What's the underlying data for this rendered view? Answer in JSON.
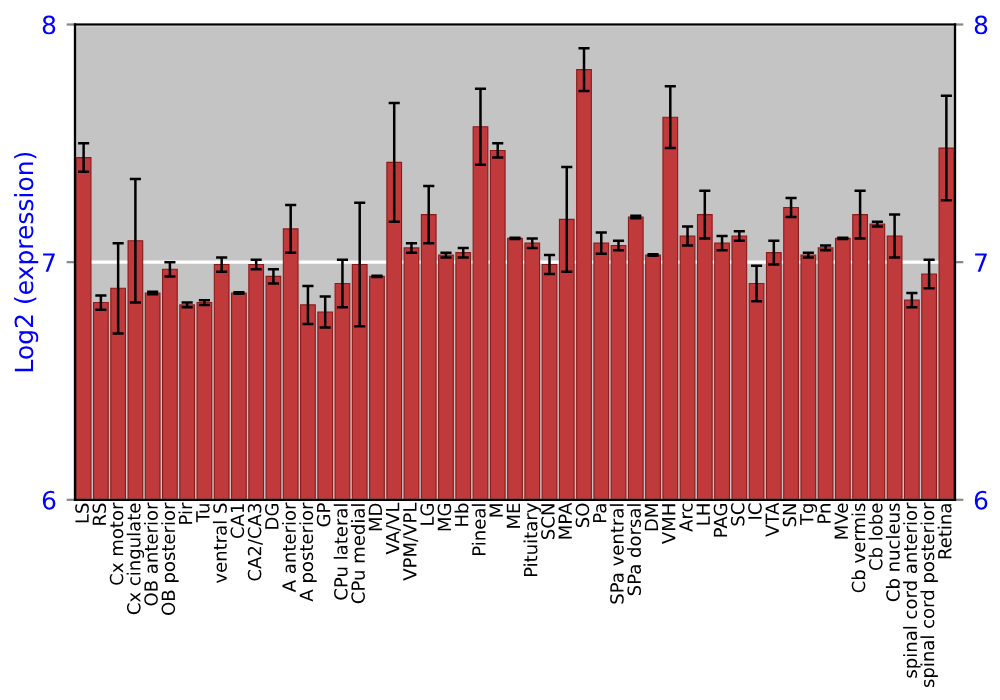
{
  "chart_data": {
    "type": "bar",
    "ylabel": "Log2 (expression)",
    "categories": [
      "LS",
      "RS",
      "Cx motor",
      "Cx cingulate",
      "OB anterior",
      "OB posterior",
      "Pir",
      "Tu",
      "ventral S",
      "CA1",
      "CA2/CA3",
      "DG",
      "A anterior",
      "A posterior",
      "GP",
      "CPu lateral",
      "CPu medial",
      "MD",
      "VA/VL",
      "VPM/VPL",
      "LG",
      "MG",
      "Hb",
      "Pineal",
      "M",
      "ME",
      "Pituitary",
      "SCN",
      "MPA",
      "SO",
      "Pa",
      "SPa ventral",
      "SPa dorsal",
      "DM",
      "VMH",
      "Arc",
      "LH",
      "PAG",
      "SC",
      "IC",
      "VTA",
      "SN",
      "Tg",
      "Pn",
      "MVe",
      "Cb vermis",
      "Cb lobe",
      "Cb nucleus",
      "spinal cord anterior",
      "spinal cord posterior",
      "Retina"
    ],
    "values": [
      7.44,
      6.83,
      6.89,
      7.09,
      6.87,
      6.97,
      6.82,
      6.83,
      6.99,
      6.87,
      6.99,
      6.94,
      7.14,
      6.82,
      6.79,
      6.91,
      6.99,
      6.94,
      7.42,
      7.06,
      7.2,
      7.03,
      7.04,
      7.57,
      7.47,
      7.1,
      7.08,
      6.99,
      7.18,
      7.81,
      7.08,
      7.07,
      7.19,
      7.03,
      7.61,
      7.11,
      7.2,
      7.08,
      7.11,
      6.91,
      7.04,
      7.23,
      7.03,
      7.06,
      7.1,
      7.2,
      7.16,
      7.11,
      6.84,
      6.95,
      7.48
    ],
    "errors": [
      0.06,
      0.03,
      0.19,
      0.26,
      0.005,
      0.03,
      0.01,
      0.01,
      0.03,
      0.003,
      0.02,
      0.03,
      0.1,
      0.08,
      0.065,
      0.1,
      0.26,
      0.003,
      0.25,
      0.02,
      0.12,
      0.01,
      0.02,
      0.16,
      0.03,
      0.003,
      0.02,
      0.04,
      0.22,
      0.09,
      0.045,
      0.02,
      0.005,
      0.003,
      0.13,
      0.04,
      0.1,
      0.03,
      0.02,
      0.075,
      0.05,
      0.04,
      0.01,
      0.01,
      0.003,
      0.1,
      0.01,
      0.09,
      0.03,
      0.06,
      0.22
    ],
    "color": "#c0393b",
    "ylim": [
      6,
      8
    ],
    "yticks": [
      6,
      7,
      8
    ],
    "y2lim": [
      6,
      8
    ],
    "y2ticks": [
      6,
      7,
      8
    ],
    "grid": "y",
    "legend": false
  }
}
